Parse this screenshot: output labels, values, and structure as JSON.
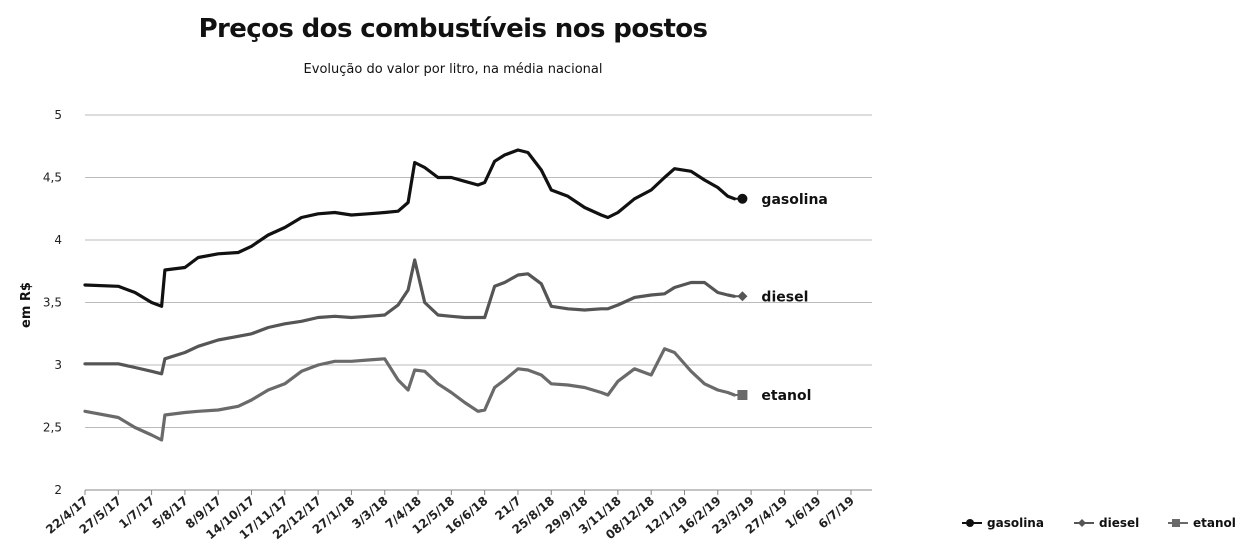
{
  "chart_data": {
    "type": "line",
    "title": "Preços dos combustíveis nos postos",
    "subtitle": "Evolução do valor por litro, na média nacional",
    "ylabel": "em R$",
    "xlabel": "",
    "ylim": [
      2,
      5
    ],
    "yticks": [
      "2",
      "2,5",
      "3",
      "3,5",
      "4",
      "4,5",
      "5"
    ],
    "xticks": [
      "22/4/17",
      "27/5/17",
      "1/7/17",
      "5/8/17",
      "8/9/17",
      "14/10/17",
      "17/11/17",
      "22/12/17",
      "27/1/18",
      "3/3/18",
      "7/4/18",
      "12/5/18",
      "16/6/18",
      "21/7",
      "25/8/18",
      "29/9/18",
      "3/11/18",
      "08/12/18",
      "12/1/19",
      "16/2/19",
      "23/3/19",
      "27/4/19",
      "1/6/19",
      "6/7/19"
    ],
    "grid": true,
    "legend": "bottom-right",
    "series": [
      {
        "name": "gasolina",
        "color": "#111111",
        "marker": "circle",
        "values": [
          [
            0,
            3.64
          ],
          [
            1,
            3.63
          ],
          [
            1.5,
            3.58
          ],
          [
            2,
            3.5
          ],
          [
            2.3,
            3.47
          ],
          [
            2.4,
            3.76
          ],
          [
            3,
            3.78
          ],
          [
            3.4,
            3.86
          ],
          [
            4,
            3.89
          ],
          [
            4.6,
            3.9
          ],
          [
            5,
            3.95
          ],
          [
            5.5,
            4.04
          ],
          [
            6,
            4.1
          ],
          [
            6.5,
            4.18
          ],
          [
            7,
            4.21
          ],
          [
            7.5,
            4.22
          ],
          [
            8,
            4.2
          ],
          [
            8.5,
            4.21
          ],
          [
            9,
            4.22
          ],
          [
            9.4,
            4.23
          ],
          [
            9.7,
            4.3
          ],
          [
            9.9,
            4.62
          ],
          [
            10.2,
            4.58
          ],
          [
            10.6,
            4.5
          ],
          [
            11,
            4.5
          ],
          [
            11.4,
            4.47
          ],
          [
            11.8,
            4.44
          ],
          [
            12,
            4.46
          ],
          [
            12.3,
            4.63
          ],
          [
            12.6,
            4.68
          ],
          [
            13,
            4.72
          ],
          [
            13.3,
            4.7
          ],
          [
            13.7,
            4.56
          ],
          [
            14,
            4.4
          ],
          [
            14.5,
            4.35
          ],
          [
            15,
            4.26
          ],
          [
            15.5,
            4.2
          ],
          [
            15.7,
            4.18
          ],
          [
            16,
            4.22
          ],
          [
            16.5,
            4.33
          ],
          [
            17,
            4.4
          ],
          [
            17.4,
            4.5
          ],
          [
            17.7,
            4.57
          ],
          [
            18.2,
            4.55
          ],
          [
            18.6,
            4.48
          ],
          [
            19,
            4.42
          ],
          [
            19.3,
            4.35
          ],
          [
            19.5,
            4.33
          ]
        ]
      },
      {
        "name": "diesel",
        "color": "#555555",
        "marker": "diamond",
        "values": [
          [
            0,
            3.01
          ],
          [
            1,
            3.01
          ],
          [
            1.5,
            2.98
          ],
          [
            2,
            2.95
          ],
          [
            2.3,
            2.93
          ],
          [
            2.4,
            3.05
          ],
          [
            3,
            3.1
          ],
          [
            3.4,
            3.15
          ],
          [
            4,
            3.2
          ],
          [
            4.6,
            3.23
          ],
          [
            5,
            3.25
          ],
          [
            5.5,
            3.3
          ],
          [
            6,
            3.33
          ],
          [
            6.5,
            3.35
          ],
          [
            7,
            3.38
          ],
          [
            7.5,
            3.39
          ],
          [
            8,
            3.38
          ],
          [
            8.5,
            3.39
          ],
          [
            9,
            3.4
          ],
          [
            9.4,
            3.48
          ],
          [
            9.7,
            3.6
          ],
          [
            9.9,
            3.84
          ],
          [
            10.2,
            3.5
          ],
          [
            10.6,
            3.4
          ],
          [
            11,
            3.39
          ],
          [
            11.4,
            3.38
          ],
          [
            11.8,
            3.38
          ],
          [
            12,
            3.38
          ],
          [
            12.3,
            3.63
          ],
          [
            12.6,
            3.66
          ],
          [
            13,
            3.72
          ],
          [
            13.3,
            3.73
          ],
          [
            13.7,
            3.65
          ],
          [
            14,
            3.47
          ],
          [
            14.5,
            3.45
          ],
          [
            15,
            3.44
          ],
          [
            15.5,
            3.45
          ],
          [
            15.7,
            3.45
          ],
          [
            16,
            3.48
          ],
          [
            16.5,
            3.54
          ],
          [
            17,
            3.56
          ],
          [
            17.4,
            3.57
          ],
          [
            17.7,
            3.62
          ],
          [
            18.2,
            3.66
          ],
          [
            18.6,
            3.66
          ],
          [
            19,
            3.58
          ],
          [
            19.3,
            3.56
          ],
          [
            19.5,
            3.55
          ]
        ]
      },
      {
        "name": "etanol",
        "color": "#6a6a6a",
        "marker": "square",
        "values": [
          [
            0,
            2.63
          ],
          [
            1,
            2.58
          ],
          [
            1.5,
            2.5
          ],
          [
            2,
            2.44
          ],
          [
            2.3,
            2.4
          ],
          [
            2.4,
            2.6
          ],
          [
            3,
            2.62
          ],
          [
            3.4,
            2.63
          ],
          [
            4,
            2.64
          ],
          [
            4.6,
            2.67
          ],
          [
            5,
            2.72
          ],
          [
            5.5,
            2.8
          ],
          [
            6,
            2.85
          ],
          [
            6.5,
            2.95
          ],
          [
            7,
            3.0
          ],
          [
            7.5,
            3.03
          ],
          [
            8,
            3.03
          ],
          [
            8.5,
            3.04
          ],
          [
            9,
            3.05
          ],
          [
            9.4,
            2.88
          ],
          [
            9.7,
            2.8
          ],
          [
            9.9,
            2.96
          ],
          [
            10.2,
            2.95
          ],
          [
            10.6,
            2.85
          ],
          [
            11,
            2.78
          ],
          [
            11.4,
            2.7
          ],
          [
            11.8,
            2.63
          ],
          [
            12,
            2.64
          ],
          [
            12.3,
            2.82
          ],
          [
            12.6,
            2.88
          ],
          [
            13,
            2.97
          ],
          [
            13.3,
            2.96
          ],
          [
            13.7,
            2.92
          ],
          [
            14,
            2.85
          ],
          [
            14.5,
            2.84
          ],
          [
            15,
            2.82
          ],
          [
            15.5,
            2.78
          ],
          [
            15.7,
            2.76
          ],
          [
            16,
            2.87
          ],
          [
            16.5,
            2.97
          ],
          [
            17,
            2.92
          ],
          [
            17.4,
            3.13
          ],
          [
            17.7,
            3.1
          ],
          [
            18.2,
            2.95
          ],
          [
            18.6,
            2.85
          ],
          [
            19,
            2.8
          ],
          [
            19.3,
            2.78
          ],
          [
            19.5,
            2.76
          ]
        ]
      }
    ]
  }
}
